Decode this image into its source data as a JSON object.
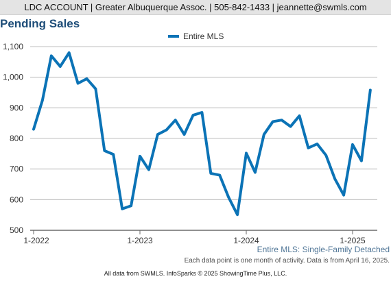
{
  "header": {
    "text": "LDC ACCOUNT | Greater Albuquerque Assoc. | 505-842-1433 | jeannette@swmls.com"
  },
  "chart_data": {
    "type": "line",
    "title": "Pending Sales",
    "subtitle": "Entire MLS: Single-Family Detached",
    "legend": {
      "entries": [
        "Entire MLS"
      ],
      "placement": "top-center"
    },
    "xlabel": "",
    "ylabel": "",
    "x_tick_labels": [
      "1-2022",
      "1-2023",
      "1-2024",
      "1-2025"
    ],
    "y_tick_labels": [
      "1,100",
      "1,000",
      "900",
      "800",
      "700",
      "600",
      "500"
    ],
    "ylim": [
      500,
      1100
    ],
    "grid": "horizontal",
    "colors": {
      "series": "#0b73b6",
      "grid": "#aaaaaa",
      "axis": "#666666",
      "title": "#1f4e79",
      "subtitle": "#4f7596"
    },
    "x": [
      "2022-01",
      "2022-02",
      "2022-03",
      "2022-04",
      "2022-05",
      "2022-06",
      "2022-07",
      "2022-08",
      "2022-09",
      "2022-10",
      "2022-11",
      "2022-12",
      "2023-01",
      "2023-02",
      "2023-03",
      "2023-04",
      "2023-05",
      "2023-06",
      "2023-07",
      "2023-08",
      "2023-09",
      "2023-10",
      "2023-11",
      "2023-12",
      "2024-01",
      "2024-02",
      "2024-03",
      "2024-04",
      "2024-05",
      "2024-06",
      "2024-07",
      "2024-08",
      "2024-09",
      "2024-10",
      "2024-11",
      "2024-12",
      "2025-01",
      "2025-02",
      "2025-03"
    ],
    "series": [
      {
        "name": "Entire MLS",
        "values": [
          830,
          925,
          1070,
          1035,
          1080,
          980,
          995,
          962,
          760,
          748,
          570,
          580,
          742,
          698,
          813,
          828,
          860,
          813,
          876,
          885,
          686,
          680,
          608,
          551,
          752,
          689,
          813,
          855,
          860,
          839,
          874,
          769,
          782,
          745,
          668,
          615,
          780,
          727,
          958
        ]
      }
    ]
  },
  "notes": {
    "data_point": "Each data point is one month of activity. Data is from April 16, 2025."
  },
  "footer": {
    "text": "All data from SWMLS. InfoSparks © 2025 ShowingTime Plus, LLC."
  }
}
